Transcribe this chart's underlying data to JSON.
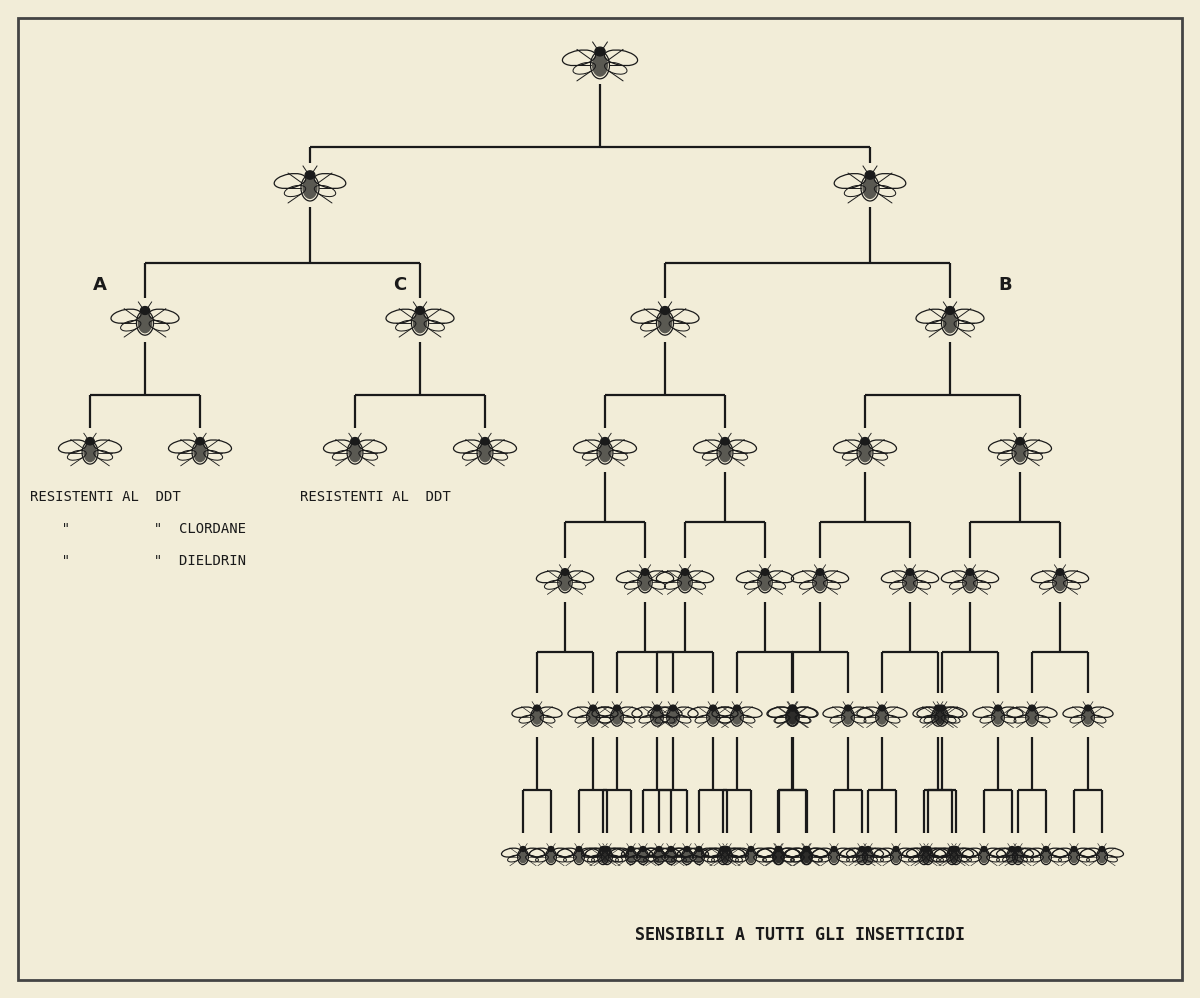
{
  "background_color": "#f2edd8",
  "line_color": "#1a1a1a",
  "text_color": "#1a1a1a",
  "fly_color": "#1a1a1a",
  "border_color": "#444444",
  "label_A": "A",
  "label_B": "B",
  "label_C": "C",
  "left_text_line1": "RESISTENTI AL  DDT",
  "left_text_line2": "  \"          \"  CLORDANE",
  "left_text_line3": "  \"          \"  DIELDRIN",
  "center_text": "RESISTENTI AL  DDT",
  "bottom_text": "SENSIBILI A TUTTI GLI INSETTICIDI",
  "font_size_labels": 10,
  "font_size_bottom": 12,
  "font_size_abc": 13
}
